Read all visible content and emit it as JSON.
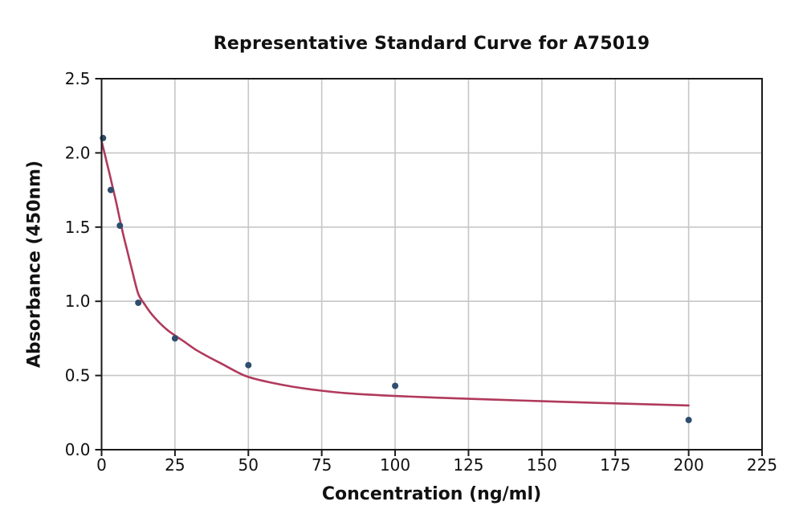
{
  "chart_data": {
    "type": "scatter",
    "title": "Representative Standard Curve for A75019",
    "xlabel": "Concentration (ng/ml)",
    "ylabel": "Absorbance (450nm)",
    "xlim": [
      0,
      225
    ],
    "ylim": [
      0,
      2.5
    ],
    "grid": true,
    "legend": "none",
    "xticks": {
      "values": [
        0,
        25,
        50,
        75,
        100,
        125,
        150,
        175,
        200,
        225
      ],
      "labels": [
        "0",
        "25",
        "50",
        "75",
        "100",
        "125",
        "150",
        "175",
        "200",
        "225"
      ]
    },
    "yticks": {
      "values": [
        0,
        0.5,
        1,
        1.5,
        2,
        2.5
      ],
      "labels": [
        "0.0",
        "0.5",
        "1.0",
        "1.5",
        "2.0",
        "2.5"
      ]
    },
    "series": [
      {
        "name": "standard-data-points",
        "type": "scatter",
        "color": "#2f4d6d",
        "marker_radius": 7,
        "x": [
          0.5,
          3.125,
          6.25,
          12.5,
          25,
          50,
          100,
          200
        ],
        "y": [
          2.1,
          1.75,
          1.51,
          0.99,
          0.75,
          0.57,
          0.43,
          0.2
        ]
      },
      {
        "name": "fitted-curve",
        "type": "line",
        "color": "#b03a5c",
        "line_width": 2.6,
        "x": [
          0,
          0.8,
          1.6,
          2.4,
          3.125,
          4,
          5,
          6.25,
          7.5,
          9,
          10.5,
          12.5,
          14.5,
          17,
          20,
          22.5,
          25,
          28,
          32,
          36,
          41,
          46,
          50,
          57,
          65,
          74,
          84,
          100,
          115,
          130,
          150,
          170,
          200
        ],
        "y": [
          2.08,
          2.015,
          1.95,
          1.885,
          1.825,
          1.75,
          1.665,
          1.55,
          1.44,
          1.32,
          1.2,
          1.05,
          0.985,
          0.915,
          0.85,
          0.805,
          0.77,
          0.73,
          0.675,
          0.63,
          0.578,
          0.525,
          0.49,
          0.455,
          0.425,
          0.4,
          0.38,
          0.362,
          0.35,
          0.34,
          0.327,
          0.315,
          0.298
        ]
      }
    ],
    "style": {
      "grid_color": "#c6c6c6",
      "axis_color": "#1a1a1a",
      "text_color": "#111111",
      "background": "#ffffff",
      "tick_font_size": 20
    }
  }
}
